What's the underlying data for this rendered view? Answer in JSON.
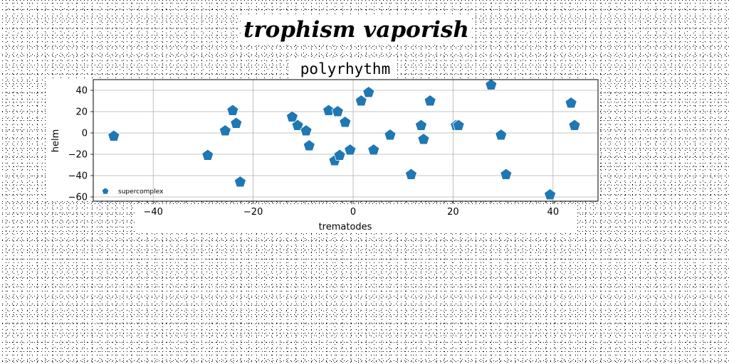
{
  "supertitle": "trophism vaporish",
  "chart_data": {
    "type": "scatter",
    "title": "polyrhythm",
    "xlabel": "trematodes",
    "ylabel": "helm",
    "xlim": [
      -52,
      49
    ],
    "ylim": [
      -64,
      50
    ],
    "xticks": [
      -40,
      -20,
      0,
      20,
      40
    ],
    "yticks": [
      -60,
      -40,
      -20,
      0,
      20,
      40
    ],
    "xtick_labels": [
      "−40",
      "−20",
      "0",
      "20",
      "40"
    ],
    "ytick_labels": [
      "−60",
      "−40",
      "−20",
      "0",
      "20",
      "40"
    ],
    "grid": true,
    "legend_placement": "lower-left",
    "marker": "pentagon",
    "color": "#1f77b4",
    "series": [
      {
        "name": "supercomplex",
        "points": [
          [
            -47.9,
            -3
          ],
          [
            -29.1,
            -21
          ],
          [
            -25.6,
            2
          ],
          [
            -24.1,
            21
          ],
          [
            -23.4,
            9
          ],
          [
            -22.6,
            -46
          ],
          [
            -12.2,
            15
          ],
          [
            -11.1,
            7
          ],
          [
            -9.4,
            2
          ],
          [
            -8.8,
            -12
          ],
          [
            -4.9,
            21
          ],
          [
            -3.7,
            -26
          ],
          [
            -3.1,
            20
          ],
          [
            -2.7,
            -21
          ],
          [
            -1.6,
            10
          ],
          [
            -0.6,
            -16
          ],
          [
            1.6,
            30
          ],
          [
            3.1,
            38
          ],
          [
            4.1,
            -16
          ],
          [
            7.4,
            -2
          ],
          [
            11.6,
            -39
          ],
          [
            13.6,
            7
          ],
          [
            14.1,
            -6
          ],
          [
            15.4,
            30
          ],
          [
            20.6,
            7
          ],
          [
            21.1,
            7
          ],
          [
            27.6,
            45
          ],
          [
            29.6,
            -2
          ],
          [
            30.6,
            -39
          ],
          [
            39.4,
            -58
          ],
          [
            43.6,
            28
          ],
          [
            44.3,
            7
          ]
        ]
      }
    ]
  }
}
